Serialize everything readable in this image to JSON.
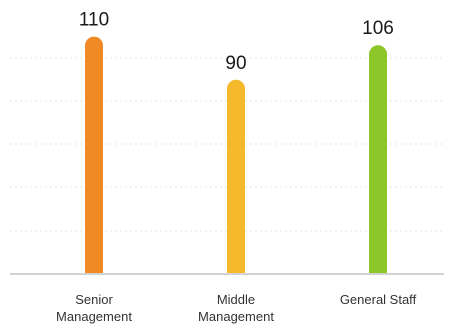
{
  "chart_data": {
    "type": "bar",
    "categories": [
      [
        "Senior",
        "Management"
      ],
      [
        "Middle",
        "Management"
      ],
      [
        "General Staff"
      ]
    ],
    "values": [
      110,
      90,
      106
    ],
    "colors": [
      "#f08a24",
      "#f6b92b",
      "#8cc628"
    ],
    "ylim": [
      0,
      120
    ],
    "grid": true,
    "title": "",
    "xlabel": "",
    "ylabel": ""
  }
}
